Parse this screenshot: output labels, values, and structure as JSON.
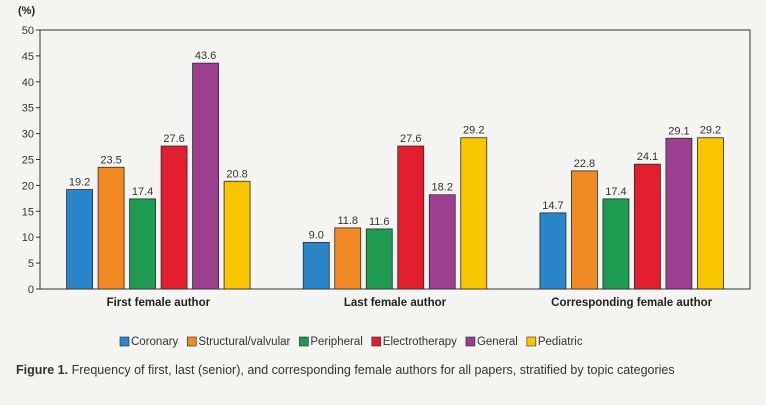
{
  "chart_data": {
    "type": "bar",
    "ylabel": "(%)",
    "ylim": [
      0,
      50
    ],
    "yticks": [
      0,
      5,
      10,
      15,
      20,
      25,
      30,
      35,
      40,
      45,
      50
    ],
    "grid": false,
    "legend": "bottom",
    "categories": [
      "First female author",
      "Last female author",
      "Corresponding female author"
    ],
    "series": [
      {
        "name": "Coronary",
        "color": "#2a86c8",
        "values": [
          19.2,
          9.0,
          14.7
        ],
        "labels": [
          "19.2",
          "9.0",
          "14.7"
        ]
      },
      {
        "name": "Structural/valvular",
        "color": "#f08a24",
        "values": [
          23.5,
          11.8,
          22.8
        ],
        "labels": [
          "23.5",
          "11.8",
          "22.8"
        ]
      },
      {
        "name": "Peripheral",
        "color": "#1e9a52",
        "values": [
          17.4,
          11.6,
          17.4
        ],
        "labels": [
          "17.4",
          "11.6",
          "17.4"
        ]
      },
      {
        "name": "Electrotherapy",
        "color": "#e11d2e",
        "values": [
          27.6,
          27.6,
          24.1
        ],
        "labels": [
          "27.6",
          "27.6",
          "24.1"
        ]
      },
      {
        "name": "General",
        "color": "#9b3f8e",
        "values": [
          43.6,
          18.2,
          29.1
        ],
        "labels": [
          "43.6",
          "18.2",
          "29.1"
        ]
      },
      {
        "name": "Pediatric",
        "color": "#f7c600",
        "values": [
          20.8,
          29.2,
          29.2
        ],
        "labels": [
          "20.8",
          "29.2",
          "29.2"
        ]
      }
    ]
  },
  "caption": {
    "label": "Figure 1.",
    "text": " Frequency of first, last (senior), and corresponding female authors for all papers, stratified by topic categories"
  }
}
